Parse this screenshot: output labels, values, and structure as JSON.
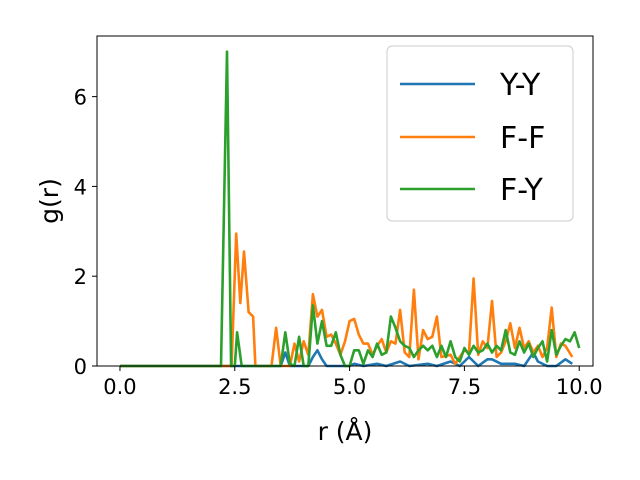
{
  "chart_data": {
    "type": "line",
    "xlabel": "r (Å)",
    "ylabel": "g(r)",
    "xlim": [
      -0.5,
      10.3
    ],
    "ylim": [
      0,
      7.35
    ],
    "xticks": [
      {
        "value": 0.0,
        "label": "0.0"
      },
      {
        "value": 2.5,
        "label": "2.5"
      },
      {
        "value": 5.0,
        "label": "5.0"
      },
      {
        "value": 7.5,
        "label": "7.5"
      },
      {
        "value": 10.0,
        "label": "10.0"
      }
    ],
    "yticks": [
      {
        "value": 0,
        "label": "0"
      },
      {
        "value": 2,
        "label": "2"
      },
      {
        "value": 4,
        "label": "4"
      },
      {
        "value": 6,
        "label": "6"
      }
    ],
    "grid": false,
    "legend_position": "top-right",
    "series": [
      {
        "name": "Y-Y",
        "color": "#1f77b4",
        "points": [
          [
            0.0,
            0
          ],
          [
            3.5,
            0
          ],
          [
            3.6,
            0.3
          ],
          [
            3.7,
            0
          ],
          [
            4.1,
            0
          ],
          [
            4.2,
            0.2
          ],
          [
            4.3,
            0.35
          ],
          [
            4.4,
            0.15
          ],
          [
            4.5,
            0
          ],
          [
            5.0,
            0
          ],
          [
            5.1,
            0.05
          ],
          [
            5.3,
            0
          ],
          [
            5.6,
            0.05
          ],
          [
            5.8,
            0
          ],
          [
            6.1,
            0.1
          ],
          [
            6.3,
            0
          ],
          [
            6.7,
            0.05
          ],
          [
            6.9,
            0
          ],
          [
            7.2,
            0.1
          ],
          [
            7.4,
            0
          ],
          [
            7.6,
            0.2
          ],
          [
            7.8,
            0
          ],
          [
            8.0,
            0.15
          ],
          [
            8.1,
            0.15
          ],
          [
            8.3,
            0.05
          ],
          [
            8.6,
            0.05
          ],
          [
            8.8,
            0
          ],
          [
            8.9,
            0.15
          ],
          [
            9.0,
            0.3
          ],
          [
            9.1,
            0.1
          ],
          [
            9.3,
            0
          ],
          [
            9.5,
            0
          ],
          [
            9.7,
            0.15
          ],
          [
            9.85,
            0.05
          ]
        ]
      },
      {
        "name": "F-F",
        "color": "#ff7f0e",
        "points": [
          [
            0.0,
            0
          ],
          [
            2.3,
            0
          ],
          [
            2.43,
            0
          ],
          [
            2.53,
            2.95
          ],
          [
            2.62,
            1.4
          ],
          [
            2.7,
            2.55
          ],
          [
            2.8,
            1.2
          ],
          [
            2.9,
            1.1
          ],
          [
            2.95,
            0
          ],
          [
            3.3,
            0
          ],
          [
            3.4,
            0.85
          ],
          [
            3.5,
            0
          ],
          [
            3.7,
            0
          ],
          [
            3.8,
            0.5
          ],
          [
            3.9,
            0.1
          ],
          [
            4.0,
            0.55
          ],
          [
            4.1,
            0.25
          ],
          [
            4.2,
            1.6
          ],
          [
            4.3,
            1.1
          ],
          [
            4.4,
            1.25
          ],
          [
            4.5,
            0.65
          ],
          [
            4.6,
            0.7
          ],
          [
            4.7,
            0.5
          ],
          [
            4.8,
            0.25
          ],
          [
            4.9,
            0.55
          ],
          [
            5.0,
            1.0
          ],
          [
            5.1,
            1.05
          ],
          [
            5.2,
            0.7
          ],
          [
            5.3,
            0.5
          ],
          [
            5.4,
            0.5
          ],
          [
            5.5,
            0.25
          ],
          [
            5.6,
            0.45
          ],
          [
            5.7,
            0.6
          ],
          [
            5.8,
            0.3
          ],
          [
            5.9,
            0.55
          ],
          [
            6.0,
            0.5
          ],
          [
            6.1,
            1.25
          ],
          [
            6.2,
            0.3
          ],
          [
            6.3,
            0.2
          ],
          [
            6.4,
            1.7
          ],
          [
            6.5,
            0.15
          ],
          [
            6.6,
            0.8
          ],
          [
            6.7,
            0.6
          ],
          [
            6.8,
            0.65
          ],
          [
            6.9,
            1.1
          ],
          [
            7.0,
            0.2
          ],
          [
            7.2,
            0.25
          ],
          [
            7.3,
            0.05
          ],
          [
            7.4,
            0.2
          ],
          [
            7.5,
            0.35
          ],
          [
            7.6,
            0.3
          ],
          [
            7.7,
            1.95
          ],
          [
            7.8,
            0.25
          ],
          [
            7.9,
            0.55
          ],
          [
            8.0,
            0.4
          ],
          [
            8.1,
            1.45
          ],
          [
            8.2,
            0.2
          ],
          [
            8.3,
            0.3
          ],
          [
            8.4,
            0.55
          ],
          [
            8.5,
            0.95
          ],
          [
            8.6,
            0.4
          ],
          [
            8.7,
            0.85
          ],
          [
            8.8,
            0.4
          ],
          [
            8.9,
            0.55
          ],
          [
            9.0,
            0.3
          ],
          [
            9.1,
            0.45
          ],
          [
            9.2,
            0.2
          ],
          [
            9.3,
            0.4
          ],
          [
            9.4,
            1.3
          ],
          [
            9.5,
            0.2
          ],
          [
            9.6,
            0.5
          ],
          [
            9.7,
            0.45
          ],
          [
            9.85,
            0.2
          ]
        ]
      },
      {
        "name": "F-Y",
        "color": "#2ca02c",
        "points": [
          [
            0.0,
            0
          ],
          [
            2.2,
            0
          ],
          [
            2.33,
            7.0
          ],
          [
            2.42,
            0
          ],
          [
            2.5,
            0
          ],
          [
            2.55,
            0.75
          ],
          [
            2.65,
            0
          ],
          [
            3.5,
            0
          ],
          [
            3.6,
            0.75
          ],
          [
            3.7,
            0.05
          ],
          [
            3.8,
            0
          ],
          [
            3.9,
            0.65
          ],
          [
            4.0,
            0
          ],
          [
            4.1,
            0
          ],
          [
            4.2,
            1.35
          ],
          [
            4.3,
            0.5
          ],
          [
            4.4,
            1.0
          ],
          [
            4.5,
            0.45
          ],
          [
            4.6,
            0.45
          ],
          [
            4.7,
            0.75
          ],
          [
            4.8,
            0.25
          ],
          [
            4.9,
            0
          ],
          [
            5.0,
            0
          ],
          [
            5.1,
            0.35
          ],
          [
            5.2,
            0.35
          ],
          [
            5.3,
            0.05
          ],
          [
            5.4,
            0.35
          ],
          [
            5.5,
            0.2
          ],
          [
            5.6,
            0.5
          ],
          [
            5.7,
            0.25
          ],
          [
            5.8,
            0.3
          ],
          [
            5.9,
            1.1
          ],
          [
            6.0,
            0.85
          ],
          [
            6.1,
            0.55
          ],
          [
            6.2,
            0.45
          ],
          [
            6.3,
            0.4
          ],
          [
            6.4,
            0.2
          ],
          [
            6.5,
            0.35
          ],
          [
            6.6,
            0.45
          ],
          [
            6.7,
            0.35
          ],
          [
            6.8,
            0.45
          ],
          [
            6.9,
            0.2
          ],
          [
            7.0,
            0.45
          ],
          [
            7.1,
            0.2
          ],
          [
            7.2,
            0.55
          ],
          [
            7.3,
            0.2
          ],
          [
            7.4,
            0.1
          ],
          [
            7.5,
            0.4
          ],
          [
            7.6,
            0.25
          ],
          [
            7.7,
            0.45
          ],
          [
            7.8,
            0.3
          ],
          [
            7.9,
            0.35
          ],
          [
            8.0,
            0.5
          ],
          [
            8.1,
            0.3
          ],
          [
            8.2,
            0.45
          ],
          [
            8.3,
            0.35
          ],
          [
            8.4,
            0.8
          ],
          [
            8.5,
            0.3
          ],
          [
            8.6,
            0.25
          ],
          [
            8.7,
            0.55
          ],
          [
            8.8,
            0.3
          ],
          [
            8.9,
            0.5
          ],
          [
            9.0,
            0.2
          ],
          [
            9.1,
            0.4
          ],
          [
            9.2,
            0.55
          ],
          [
            9.3,
            0.1
          ],
          [
            9.4,
            0.8
          ],
          [
            9.5,
            0.25
          ],
          [
            9.6,
            0.45
          ],
          [
            9.7,
            0.6
          ],
          [
            9.8,
            0.55
          ],
          [
            9.9,
            0.75
          ],
          [
            10.0,
            0.4
          ]
        ]
      }
    ]
  }
}
